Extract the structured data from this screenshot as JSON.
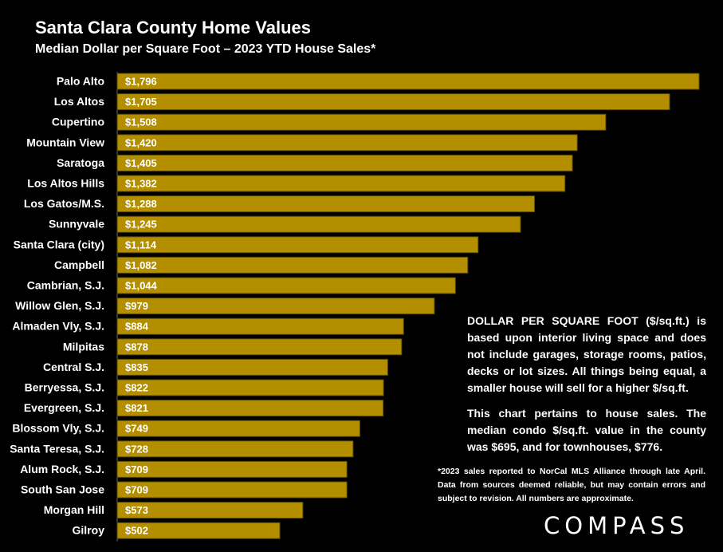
{
  "chart_data": {
    "type": "bar",
    "orientation": "horizontal",
    "title": "Santa Clara County Home Values",
    "subtitle": "Median Dollar per Square Foot – 2023 YTD House Sales*",
    "categories": [
      "Palo Alto",
      "Los Altos",
      "Cupertino",
      "Mountain View",
      "Saratoga",
      "Los Altos Hills",
      "Los Gatos/M.S.",
      "Sunnyvale",
      "Santa Clara (city)",
      "Campbell",
      "Cambrian, S.J.",
      "Willow Glen, S.J.",
      "Almaden Vly, S.J.",
      "Milpitas",
      "Central S.J.",
      "Berryessa, S.J.",
      "Evergreen, S.J.",
      "Blossom Vly, S.J.",
      "Santa Teresa, S.J.",
      "Alum Rock, S.J.",
      "South San Jose",
      "Morgan Hill",
      "Gilroy"
    ],
    "values": [
      1796,
      1705,
      1508,
      1420,
      1405,
      1382,
      1288,
      1245,
      1114,
      1082,
      1044,
      979,
      884,
      878,
      835,
      822,
      821,
      749,
      728,
      709,
      709,
      573,
      502
    ],
    "value_labels": [
      "$1,796",
      "$1,705",
      "$1,508",
      "$1,420",
      "$1,405",
      "$1,382",
      "$1,288",
      "$1,245",
      "$1,114",
      "$1,082",
      "$1,044",
      "$979",
      "$884",
      "$878",
      "$835",
      "$822",
      "$821",
      "$749",
      "$728",
      "$709",
      "$709",
      "$573",
      "$502"
    ],
    "xlim": [
      0,
      1796
    ],
    "grid": false,
    "colors": {
      "bar": "#B38F00",
      "bar_border": "#5C4A00",
      "background": "#000000",
      "text": "#FFFFFF"
    }
  },
  "notes": {
    "paragraph1": "DOLLAR PER SQUARE FOOT ($/sq.ft.) is based upon interior living space and does not include garages, storage rooms, patios, decks or lot sizes. All things being equal, a smaller house will sell for a higher $/sq.ft.",
    "paragraph2": "This chart pertains to house sales. The median condo $/sq.ft. value in the county was $695, and for townhouses, $776."
  },
  "footnote": "*2023 sales reported to NorCal MLS Alliance through late April. Data from sources deemed reliable, but may contain errors and subject to revision. All numbers are approximate.",
  "logo": "COMPASS"
}
